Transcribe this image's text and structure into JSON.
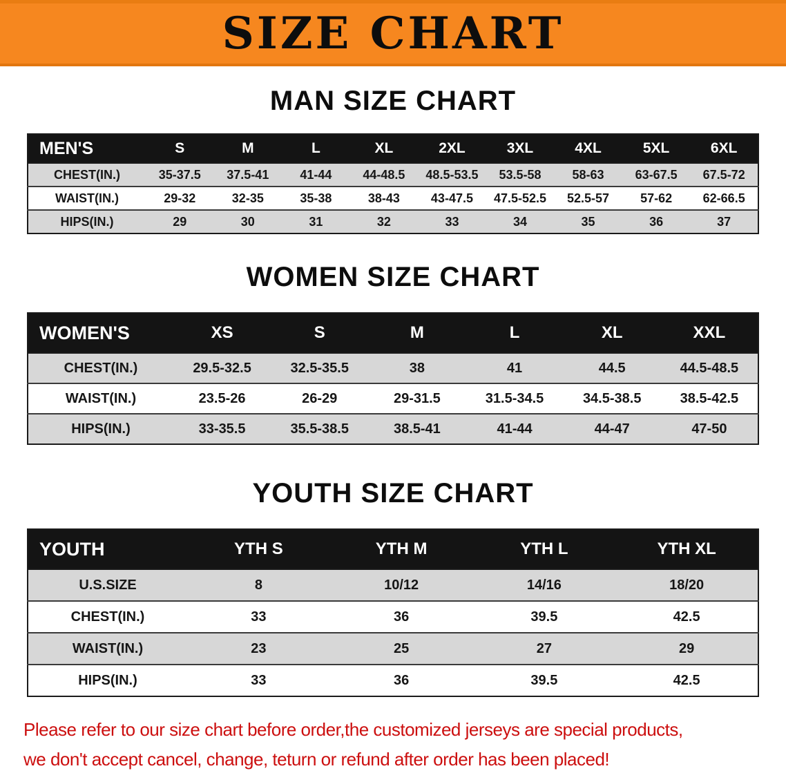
{
  "banner": {
    "title": "SIZE CHART"
  },
  "colors": {
    "accent_orange": "#f6871f",
    "header_black": "#141414",
    "row_gray": "#d7d7d7",
    "footer_red": "#cc0f0f"
  },
  "sections": [
    {
      "heading": "MAN SIZE CHART",
      "table": {
        "title": "MEN'S",
        "sizes": [
          "S",
          "M",
          "L",
          "XL",
          "2XL",
          "3XL",
          "4XL",
          "5XL",
          "6XL"
        ],
        "rows": [
          {
            "label": "CHEST(IN.)",
            "values": [
              "35-37.5",
              "37.5-41",
              "41-44",
              "44-48.5",
              "48.5-53.5",
              "53.5-58",
              "58-63",
              "63-67.5",
              "67.5-72"
            ]
          },
          {
            "label": "WAIST(IN.)",
            "values": [
              "29-32",
              "32-35",
              "35-38",
              "38-43",
              "43-47.5",
              "47.5-52.5",
              "52.5-57",
              "57-62",
              "62-66.5"
            ]
          },
          {
            "label": "HIPS(IN.)",
            "values": [
              "29",
              "30",
              "31",
              "32",
              "33",
              "34",
              "35",
              "36",
              "37"
            ]
          }
        ]
      }
    },
    {
      "heading": "WOMEN SIZE CHART",
      "table": {
        "title": "WOMEN'S",
        "sizes": [
          "XS",
          "S",
          "M",
          "L",
          "XL",
          "XXL"
        ],
        "rows": [
          {
            "label": "CHEST(IN.)",
            "values": [
              "29.5-32.5",
              "32.5-35.5",
              "38",
              "41",
              "44.5",
              "44.5-48.5"
            ]
          },
          {
            "label": "WAIST(IN.)",
            "values": [
              "23.5-26",
              "26-29",
              "29-31.5",
              "31.5-34.5",
              "34.5-38.5",
              "38.5-42.5"
            ]
          },
          {
            "label": "HIPS(IN.)",
            "values": [
              "33-35.5",
              "35.5-38.5",
              "38.5-41",
              "41-44",
              "44-47",
              "47-50"
            ]
          }
        ]
      }
    },
    {
      "heading": "YOUTH SIZE CHART",
      "table": {
        "title": "YOUTH",
        "sizes": [
          "YTH S",
          "YTH M",
          "YTH L",
          "YTH XL"
        ],
        "rows": [
          {
            "label": "U.S.SIZE",
            "values": [
              "8",
              "10/12",
              "14/16",
              "18/20"
            ]
          },
          {
            "label": "CHEST(IN.)",
            "values": [
              "33",
              "36",
              "39.5",
              "42.5"
            ]
          },
          {
            "label": "WAIST(IN.)",
            "values": [
              "23",
              "25",
              "27",
              "29"
            ]
          },
          {
            "label": "HIPS(IN.)",
            "values": [
              "33",
              "36",
              "39.5",
              "42.5"
            ]
          }
        ]
      }
    }
  ],
  "footer": {
    "line1": "Please refer to our size chart before order,the customized jerseys are special products,",
    "line2": "we don't accept cancel, change, teturn or refund after order has been placed!"
  }
}
